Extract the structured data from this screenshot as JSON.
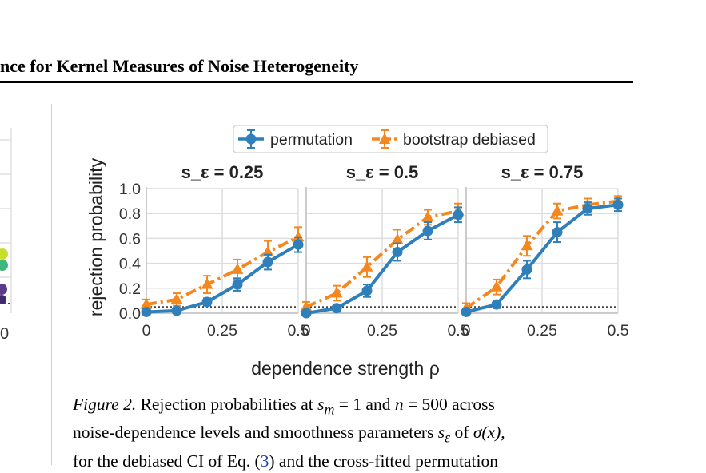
{
  "header": {
    "running_title": "nce for Kernel Measures of Noise Heterogeneity"
  },
  "left_fragment": {
    "tick_label": "0"
  },
  "legend": {
    "permutation": "permutation",
    "bootstrap": "bootstrap debiased"
  },
  "chart_data": {
    "type": "line",
    "ylabel": "rejection probability",
    "xlabel": "dependence strength ρ",
    "xlim": [
      0,
      0.5
    ],
    "ylim": [
      0,
      1.0
    ],
    "x_ticks": [
      "0",
      "0.25",
      "0.5"
    ],
    "y_ticks": [
      "0.0",
      "0.2",
      "0.4",
      "0.6",
      "0.8",
      "1.0"
    ],
    "grid": true,
    "legend_position": "top-center",
    "reference_line": 0.05,
    "colors": {
      "permutation": "#2f7fbb",
      "bootstrap": "#f5871f",
      "reference": "#444444"
    },
    "x": [
      0.0,
      0.1,
      0.2,
      0.3,
      0.4,
      0.5
    ],
    "panels": [
      {
        "title": "s_ε = 0.25",
        "series": [
          {
            "name": "permutation",
            "values": [
              0.01,
              0.02,
              0.09,
              0.23,
              0.41,
              0.55
            ],
            "err": [
              0.02,
              0.02,
              0.03,
              0.05,
              0.06,
              0.06
            ]
          },
          {
            "name": "bootstrap debiased",
            "values": [
              0.07,
              0.11,
              0.23,
              0.35,
              0.49,
              0.61
            ],
            "err": [
              0.04,
              0.05,
              0.07,
              0.08,
              0.09,
              0.08
            ]
          }
        ]
      },
      {
        "title": "s_ε = 0.5",
        "series": [
          {
            "name": "permutation",
            "values": [
              0.0,
              0.04,
              0.18,
              0.49,
              0.66,
              0.79
            ],
            "err": [
              0.02,
              0.03,
              0.05,
              0.07,
              0.07,
              0.06
            ]
          },
          {
            "name": "bootstrap debiased",
            "values": [
              0.05,
              0.16,
              0.37,
              0.59,
              0.77,
              0.82
            ],
            "err": [
              0.04,
              0.06,
              0.08,
              0.08,
              0.06,
              0.06
            ]
          }
        ]
      },
      {
        "title": "s_ε = 0.75",
        "series": [
          {
            "name": "permutation",
            "values": [
              0.01,
              0.07,
              0.35,
              0.65,
              0.84,
              0.87
            ],
            "err": [
              0.02,
              0.03,
              0.07,
              0.08,
              0.05,
              0.05
            ]
          },
          {
            "name": "bootstrap debiased",
            "values": [
              0.04,
              0.21,
              0.54,
              0.82,
              0.87,
              0.9
            ],
            "err": [
              0.04,
              0.06,
              0.08,
              0.06,
              0.05,
              0.04
            ]
          }
        ]
      }
    ]
  },
  "caption": {
    "label": "Figure 2.",
    "line1_a": "Rejection probabilities at",
    "sm_math": "s",
    "sm_sub": "m",
    "eq1": "= 1 and",
    "n_math": "n",
    "eq2": "= 500 across",
    "line2_a": "noise-dependence levels and smoothness parameters",
    "se_math": "s",
    "se_sub": "ε",
    "line2_b": "of",
    "sigma_math": "σ(x),",
    "line3_a": "for the debiased CI of Eq. (",
    "eq_ref": "3",
    "line3_b": ") and the cross-fitted permutation"
  }
}
